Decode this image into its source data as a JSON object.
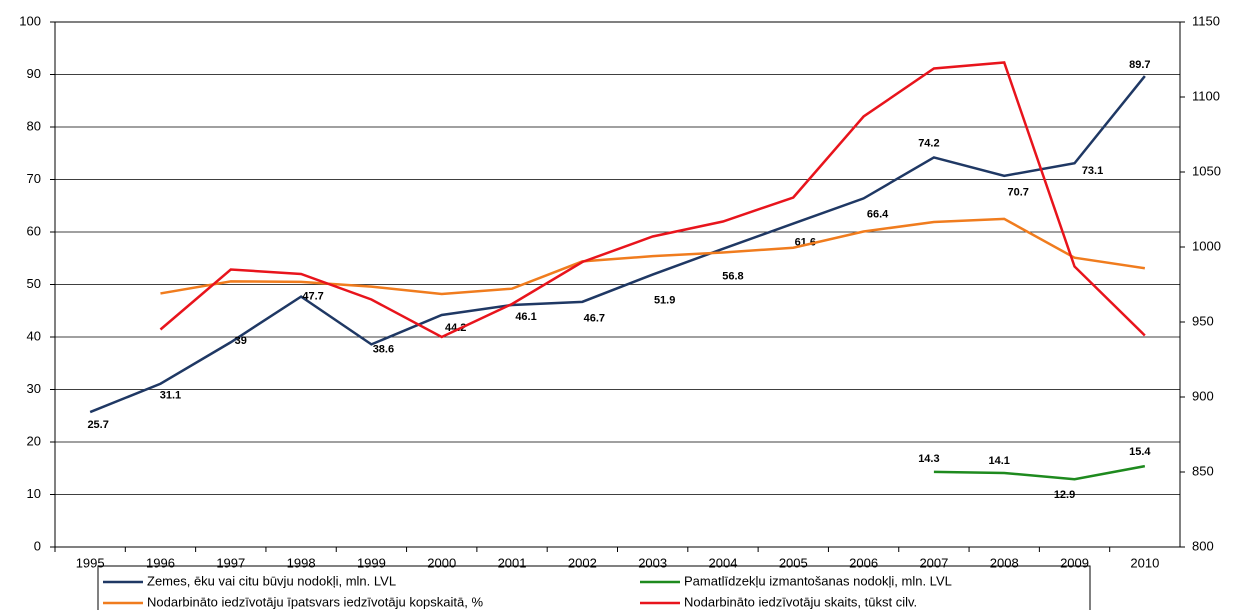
{
  "chart_data": {
    "type": "line",
    "categories": [
      "1995",
      "1996",
      "1997",
      "1998",
      "1999",
      "2000",
      "2001",
      "2002",
      "2003",
      "2004",
      "2005",
      "2006",
      "2007",
      "2008",
      "2009",
      "2010"
    ],
    "series": [
      {
        "name": "Zemes, ēku vai citu būvju nodokļi, mln. LVL",
        "color": "#1f3864",
        "data_labels": true,
        "values": [
          25.7,
          31.1,
          39,
          47.7,
          38.6,
          44.2,
          46.1,
          46.7,
          51.9,
          56.8,
          61.6,
          66.4,
          74.2,
          70.7,
          73.1,
          89.7
        ]
      },
      {
        "name": "Pamatlīdzekļu izmantošanas nodokļi, mln. LVL",
        "color": "#1e8a1e",
        "data_labels": true,
        "values": [
          null,
          null,
          null,
          null,
          null,
          null,
          null,
          null,
          null,
          null,
          null,
          null,
          14.3,
          14.1,
          12.9,
          15.4
        ]
      },
      {
        "name": "Nodarbināto iedzīvotāju īpatsvars iedzīvotāju kopskaitā, %",
        "color": "#f07c1e",
        "data_labels": false,
        "values": [
          null,
          48.3,
          50.6,
          50.5,
          49.6,
          48.2,
          49.2,
          54.4,
          55.4,
          56.1,
          57.0,
          60.1,
          61.9,
          62.5,
          55.1,
          53.1
        ]
      },
      {
        "name": "Nodarbināto iedzīvotāju skaits, tūkst cilv.",
        "color": "#e8141c",
        "axis": "y2",
        "data_labels": false,
        "values": [
          null,
          945,
          985,
          982,
          965,
          940,
          962,
          990,
          1007,
          1017,
          1033,
          1087,
          1119,
          1123,
          987,
          941
        ]
      }
    ],
    "ylim": [
      0,
      100
    ],
    "yticks": [
      0,
      10,
      20,
      30,
      40,
      50,
      60,
      70,
      80,
      90,
      100
    ],
    "y2lim": [
      800,
      1150
    ],
    "y2ticks": [
      800,
      850,
      900,
      950,
      1000,
      1050,
      1100,
      1150
    ],
    "grid": true,
    "legend": "bottom"
  }
}
